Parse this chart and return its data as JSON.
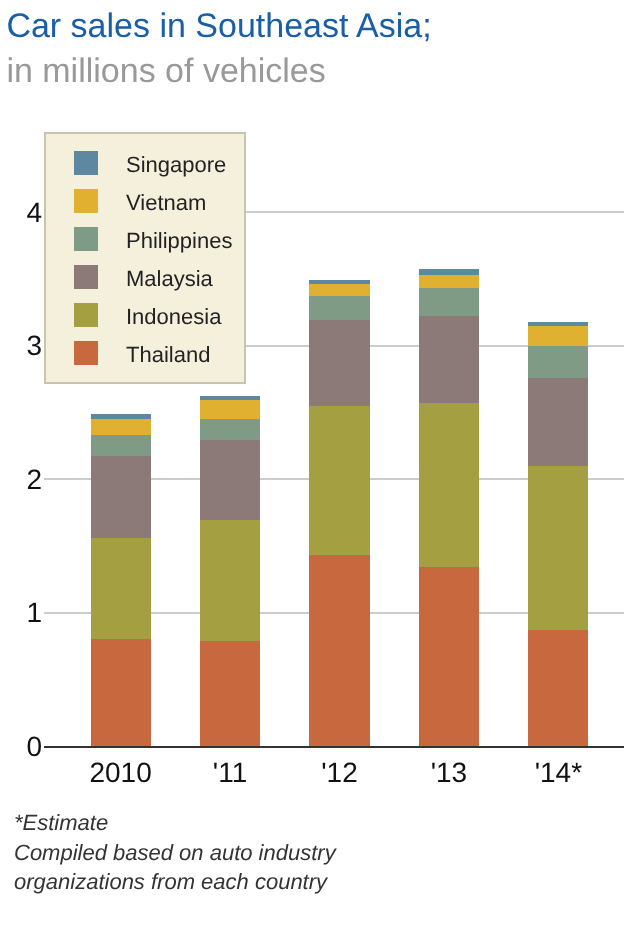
{
  "chart_data": {
    "type": "bar",
    "title": "Car sales in Southeast Asia;",
    "subtitle": "in millions of vehicles",
    "categories": [
      "2010",
      "'11",
      "'12",
      "'13",
      "'14*"
    ],
    "stacked": true,
    "series": [
      {
        "name": "Thailand",
        "color": "#c8683e",
        "values": [
          0.8,
          0.79,
          1.43,
          1.34,
          0.87
        ]
      },
      {
        "name": "Indonesia",
        "color": "#a4a042",
        "values": [
          0.76,
          0.9,
          1.12,
          1.23,
          1.23
        ]
      },
      {
        "name": "Malaysia",
        "color": "#8c7a78",
        "values": [
          0.61,
          0.6,
          0.64,
          0.65,
          0.66
        ]
      },
      {
        "name": "Philippines",
        "color": "#7f9a85",
        "values": [
          0.16,
          0.16,
          0.18,
          0.21,
          0.24
        ]
      },
      {
        "name": "Vietnam",
        "color": "#e0b030",
        "values": [
          0.12,
          0.14,
          0.09,
          0.1,
          0.15
        ]
      },
      {
        "name": "Singapore",
        "color": "#5e88a0",
        "values": [
          0.04,
          0.03,
          0.03,
          0.04,
          0.03
        ]
      }
    ],
    "ylim": [
      0,
      4.6
    ],
    "yticks": [
      0,
      1,
      2,
      3,
      4
    ],
    "grid": "y",
    "legend": "top left",
    "annotations": [
      "*Estimate",
      "Compiled based on auto industry organizations from each country"
    ]
  }
}
